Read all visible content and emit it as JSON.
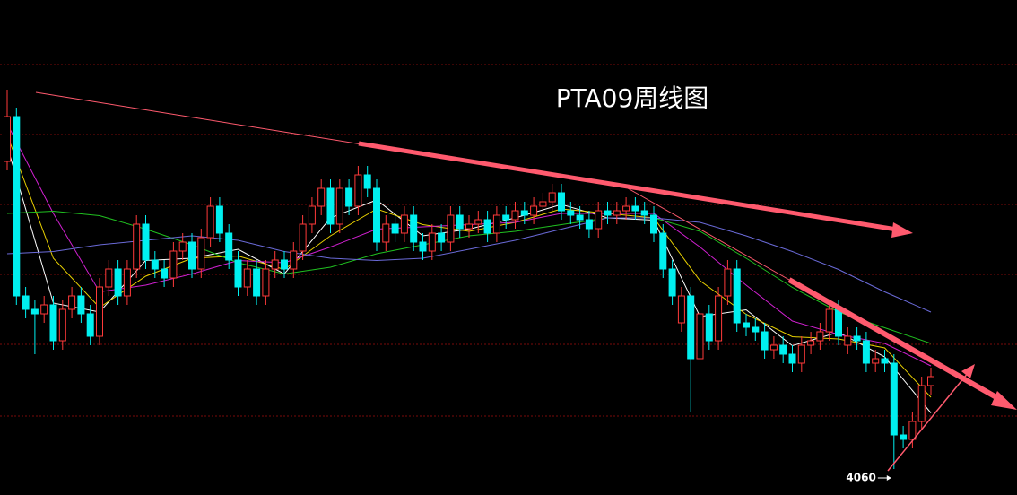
{
  "chart_data": {
    "type": "candlestick",
    "title": "PTA09周线图",
    "up_color": "#ff3a3a",
    "down_color": "#00f0f0",
    "grid": true,
    "grid_color": "#7a0a0a",
    "ylim": [
      3944,
      6152
    ],
    "yticks": [
      5864,
      5552,
      5240,
      4928,
      4616,
      4296
    ],
    "open": [
      5432,
      5632,
      4832,
      4772,
      4752,
      4792,
      4632,
      4772,
      4832,
      4752,
      4652,
      4872,
      4952,
      4832,
      4952,
      5152,
      4992,
      4952,
      4912,
      5032,
      5072,
      4952,
      5092,
      5232,
      5112,
      4992,
      4872,
      4952,
      4832,
      4952,
      4992,
      4952,
      5032,
      5152,
      5232,
      5312,
      5152,
      5312,
      5232,
      5372,
      5312,
      5072,
      5152,
      5112,
      5192,
      5072,
      5032,
      5112,
      5072,
      5192,
      5132,
      5152,
      5172,
      5112,
      5192,
      5172,
      5212,
      5192,
      5232,
      5252,
      5292,
      5212,
      5192,
      5172,
      5132,
      5212,
      5192,
      5212,
      5232,
      5212,
      5192,
      5112,
      4952,
      4712,
      4832,
      4552,
      4752,
      4632,
      4832,
      4952,
      4712,
      4692,
      4672,
      4592,
      4612,
      4572,
      4532,
      4612,
      4632,
      4672,
      4772,
      4612,
      4652,
      4632,
      4532,
      4552,
      4532,
      4212,
      4192,
      4272,
      4432
    ],
    "high": [
      5752,
      5672,
      4872,
      4812,
      4832,
      4832,
      4812,
      4872,
      4872,
      4792,
      4912,
      4992,
      4992,
      4992,
      5192,
      5192,
      5032,
      4992,
      5072,
      5112,
      5112,
      5132,
      5272,
      5272,
      5152,
      5032,
      4992,
      4992,
      4992,
      5032,
      5032,
      5072,
      5192,
      5272,
      5352,
      5352,
      5352,
      5352,
      5412,
      5412,
      5352,
      5192,
      5192,
      5232,
      5232,
      5112,
      5152,
      5152,
      5232,
      5232,
      5192,
      5212,
      5212,
      5232,
      5232,
      5252,
      5252,
      5272,
      5292,
      5332,
      5332,
      5252,
      5232,
      5212,
      5252,
      5252,
      5252,
      5272,
      5272,
      5252,
      5232,
      5152,
      4992,
      4872,
      4872,
      4792,
      4792,
      4872,
      4992,
      4992,
      4752,
      4732,
      4712,
      4652,
      4652,
      4612,
      4652,
      4672,
      4712,
      4812,
      4812,
      4692,
      4692,
      4672,
      4592,
      4592,
      4572,
      4252,
      4312,
      4472,
      4512
    ],
    "low": [
      5392,
      4792,
      4732,
      4572,
      4712,
      4592,
      4592,
      4732,
      4712,
      4612,
      4612,
      4832,
      4792,
      4792,
      4912,
      4952,
      4912,
      4872,
      4872,
      4992,
      4912,
      4912,
      5052,
      5072,
      4952,
      4832,
      4832,
      4792,
      4792,
      4912,
      4912,
      4912,
      4992,
      5112,
      5192,
      5112,
      5112,
      5192,
      5192,
      5272,
      5032,
      5032,
      5072,
      5072,
      5032,
      4992,
      4992,
      5032,
      5032,
      5092,
      5092,
      5112,
      5072,
      5072,
      5132,
      5132,
      5152,
      5152,
      5192,
      5212,
      5172,
      5152,
      5132,
      5092,
      5092,
      5152,
      5152,
      5172,
      5172,
      5152,
      5072,
      4912,
      4792,
      4672,
      4312,
      4512,
      4592,
      4592,
      4792,
      4672,
      4652,
      4632,
      4552,
      4552,
      4532,
      4492,
      4492,
      4572,
      4592,
      4632,
      4612,
      4572,
      4592,
      4492,
      4492,
      4492,
      4060,
      4152,
      4152,
      4232,
      4392
    ],
    "close": [
      5632,
      4832,
      4772,
      4752,
      4792,
      4632,
      4772,
      4832,
      4752,
      4652,
      4872,
      4952,
      4832,
      4952,
      5152,
      4992,
      4952,
      4912,
      5032,
      5072,
      4952,
      5092,
      5232,
      5112,
      4992,
      4872,
      4952,
      4832,
      4952,
      4992,
      4952,
      5032,
      5152,
      5232,
      5312,
      5152,
      5312,
      5232,
      5372,
      5312,
      5072,
      5152,
      5112,
      5192,
      5072,
      5032,
      5112,
      5072,
      5192,
      5132,
      5152,
      5172,
      5112,
      5192,
      5172,
      5212,
      5192,
      5232,
      5252,
      5292,
      5212,
      5192,
      5172,
      5132,
      5212,
      5192,
      5212,
      5232,
      5212,
      5192,
      5112,
      4952,
      4832,
      4832,
      4552,
      4752,
      4632,
      4832,
      4952,
      4712,
      4692,
      4672,
      4592,
      4612,
      4572,
      4532,
      4612,
      4632,
      4672,
      4772,
      4652,
      4652,
      4632,
      4532,
      4552,
      4532,
      4212,
      4192,
      4272,
      4432,
      4472
    ],
    "lines": [
      {
        "color": "#ffffff",
        "x": [
          0,
          5,
          10,
          15,
          20,
          25,
          30,
          35,
          40,
          45,
          50,
          55,
          60,
          65,
          70,
          75,
          80,
          85,
          90,
          95,
          100
        ],
        "values": [
          5500,
          4800,
          4760,
          4990,
          5000,
          5040,
          4930,
          5180,
          5260,
          5100,
          5130,
          5180,
          5240,
          5180,
          5170,
          4740,
          4770,
          4610,
          4670,
          4560,
          4310
        ]
      },
      {
        "color": "#e8d000",
        "x": [
          0,
          5,
          10,
          15,
          20,
          25,
          30,
          35,
          40,
          45,
          50,
          55,
          60,
          65,
          70,
          75,
          80,
          85,
          90,
          95,
          100
        ],
        "values": [
          5550,
          5000,
          4780,
          4920,
          5000,
          5010,
          4950,
          5100,
          5220,
          5150,
          5120,
          5160,
          5220,
          5200,
          5180,
          4900,
          4750,
          4650,
          4640,
          4600,
          4380
        ]
      },
      {
        "color": "#d020d0",
        "x": [
          0,
          5,
          10,
          15,
          20,
          25,
          30,
          35,
          40,
          45,
          50,
          55,
          60,
          65,
          70,
          75,
          80,
          85,
          90,
          95,
          100
        ],
        "values": [
          5600,
          5200,
          4850,
          4880,
          4930,
          4990,
          4980,
          5050,
          5130,
          5140,
          5150,
          5160,
          5200,
          5200,
          5200,
          5050,
          4880,
          4720,
          4660,
          4620,
          4520
        ]
      },
      {
        "color": "#20c020",
        "x": [
          0,
          5,
          10,
          15,
          20,
          25,
          30,
          35,
          40,
          45,
          50,
          55,
          60,
          65,
          70,
          75,
          80,
          85,
          90,
          95,
          100
        ],
        "values": [
          5200,
          5210,
          5190,
          5130,
          5060,
          4980,
          4930,
          4960,
          5020,
          5060,
          5100,
          5120,
          5150,
          5180,
          5180,
          5120,
          5000,
          4870,
          4760,
          4690,
          4620
        ]
      },
      {
        "color": "#6a6ad8",
        "x": [
          0,
          5,
          10,
          15,
          20,
          25,
          30,
          35,
          40,
          45,
          50,
          55,
          60,
          65,
          70,
          75,
          80,
          85,
          90,
          95,
          100
        ],
        "values": [
          5020,
          5030,
          5060,
          5080,
          5100,
          5080,
          5030,
          5000,
          4990,
          5000,
          5040,
          5080,
          5130,
          5180,
          5180,
          5160,
          5100,
          5030,
          4950,
          4850,
          4760
        ]
      }
    ]
  }
}
